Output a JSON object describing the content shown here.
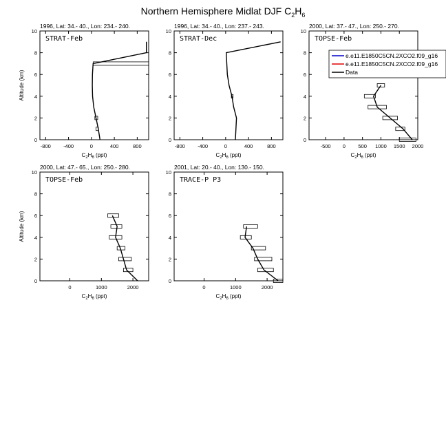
{
  "page": {
    "title_main": "Northern Hemisphere Midlat DJF C",
    "title_sub1": "2",
    "title_mid": "H",
    "title_sub2": "6"
  },
  "xlabel_parts": {
    "c": "C",
    "s1": "2",
    "h": "H",
    "s2": "6",
    "unit": " (ppt)"
  },
  "ylabel": "Altitude (km)",
  "legend": {
    "placement": "top-right of third panel",
    "entries": [
      {
        "name": "e.e11.E1850C5CN.2XCO2.f09_g16",
        "color": "#0000cc"
      },
      {
        "name": "e.e11.E1850C5CN.2XCO2.f09_g16",
        "color": "#dd0000"
      },
      {
        "name": "Data",
        "color": "#000000"
      }
    ]
  },
  "chart_data": [
    {
      "type": "line",
      "header": "1996, Lat: 34.- 40., Lon: 234.- 240.",
      "label": "STRAT-Feb",
      "xlim": [
        -900,
        1000
      ],
      "ylim": [
        0,
        10
      ],
      "xticks": [
        -800,
        -400,
        0,
        400,
        800
      ],
      "yticks": [
        0,
        2,
        4,
        6,
        8,
        10
      ],
      "data_line": [
        [
          150,
          0
        ],
        [
          120,
          1
        ],
        [
          80,
          2
        ],
        [
          40,
          3
        ],
        [
          20,
          4
        ],
        [
          15,
          5
        ],
        [
          18,
          6
        ],
        [
          30,
          7
        ],
        [
          960,
          8
        ],
        [
          960,
          9
        ]
      ],
      "boxes": [
        [
          80,
          120,
          1
        ],
        [
          60,
          110,
          2
        ],
        [
          30,
          1000,
          7
        ]
      ]
    },
    {
      "type": "line",
      "header": "1996, Lat: 34.- 40., Lon: 237.- 243.",
      "label": "STRAT-Dec",
      "xlim": [
        -900,
        1000
      ],
      "ylim": [
        0,
        10
      ],
      "xticks": [
        -800,
        -400,
        0,
        400,
        800
      ],
      "yticks": [
        0,
        2,
        4,
        6,
        8,
        10
      ],
      "data_line": [
        [
          170,
          0
        ],
        [
          180,
          1
        ],
        [
          190,
          2
        ],
        [
          140,
          3
        ],
        [
          110,
          4
        ],
        [
          60,
          5
        ],
        [
          30,
          6
        ],
        [
          20,
          7
        ],
        [
          10,
          8
        ],
        [
          960,
          9
        ]
      ],
      "boxes": [
        [
          100,
          130,
          4
        ]
      ]
    },
    {
      "type": "line",
      "header": "2000, Lat: 37.- 47., Lon: 250.- 270.",
      "label": "TOPSE-Feb",
      "xlim": [
        -950,
        2000
      ],
      "ylim": [
        0,
        10
      ],
      "xticks": [
        -500,
        0,
        500,
        1000,
        1500,
        2000
      ],
      "yticks": [
        0,
        2,
        4,
        6,
        8,
        10
      ],
      "data_line": [
        [
          1850,
          0
        ],
        [
          1600,
          1
        ],
        [
          1250,
          2
        ],
        [
          900,
          3
        ],
        [
          800,
          4
        ],
        [
          1000,
          5
        ]
      ],
      "boxes": [
        [
          1500,
          1950,
          0
        ],
        [
          1400,
          1650,
          1
        ],
        [
          1050,
          1450,
          2
        ],
        [
          650,
          1150,
          3
        ],
        [
          550,
          850,
          4
        ],
        [
          900,
          1100,
          5
        ]
      ]
    },
    {
      "type": "line",
      "header": "2000, Lat: 47.- 65., Lon: 250.- 280.",
      "label": "TOPSE-Feb",
      "xlim": [
        -950,
        2500
      ],
      "ylim": [
        0,
        10
      ],
      "xticks": [
        0,
        1000,
        2000
      ],
      "yticks": [
        0,
        2,
        4,
        6,
        8,
        10
      ],
      "data_line": [
        [
          2150,
          0
        ],
        [
          1800,
          1
        ],
        [
          1700,
          2
        ],
        [
          1600,
          3
        ],
        [
          1450,
          4
        ],
        [
          1500,
          5
        ],
        [
          1350,
          6
        ]
      ],
      "boxes": [
        [
          1700,
          2000,
          1
        ],
        [
          1550,
          1950,
          2
        ],
        [
          1500,
          1750,
          3
        ],
        [
          1250,
          1650,
          4
        ],
        [
          1300,
          1650,
          5
        ],
        [
          1200,
          1550,
          6
        ]
      ]
    },
    {
      "type": "line",
      "header": "2001, Lat: 20.- 40., Lon: 130.- 150.",
      "label": "TRACE-P P3",
      "xlim": [
        -950,
        2500
      ],
      "ylim": [
        0,
        10
      ],
      "xticks": [
        0,
        1000,
        2000
      ],
      "yticks": [
        0,
        2,
        4,
        6,
        8,
        10
      ],
      "data_line": [
        [
          2350,
          0
        ],
        [
          1900,
          1
        ],
        [
          1700,
          2
        ],
        [
          1550,
          3
        ],
        [
          1300,
          4
        ],
        [
          1350,
          5
        ]
      ],
      "boxes": [
        [
          2200,
          2500,
          0
        ],
        [
          1700,
          2200,
          1
        ],
        [
          1600,
          2150,
          2
        ],
        [
          1500,
          1950,
          3
        ],
        [
          1150,
          1500,
          4
        ],
        [
          1250,
          1700,
          5
        ]
      ]
    }
  ]
}
